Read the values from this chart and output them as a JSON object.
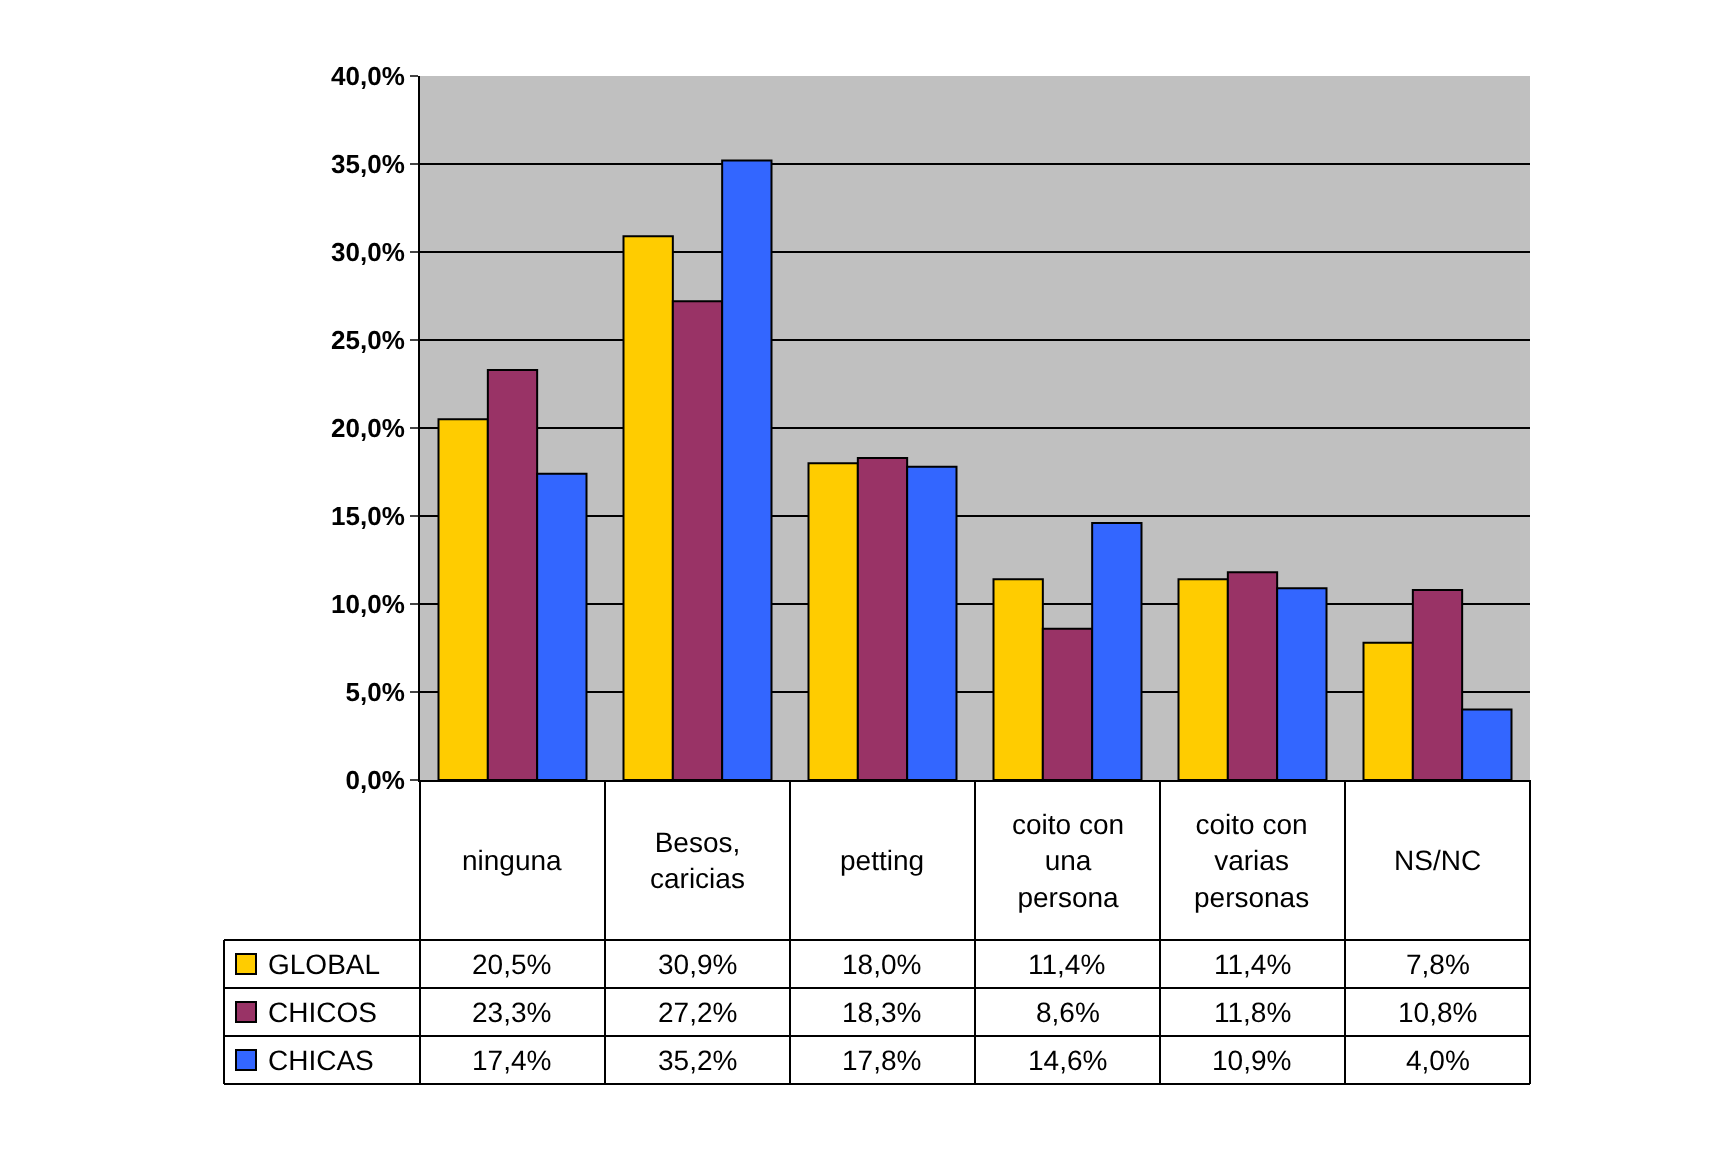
{
  "chart_data": {
    "type": "bar",
    "categories": [
      "ninguna",
      "Besos, caricias",
      "petting",
      "coito con una persona",
      "coito con varias personas",
      "NS/NC"
    ],
    "series": [
      {
        "name": "GLOBAL",
        "color": "#ffcc00",
        "values": [
          20.5,
          30.9,
          18.0,
          11.4,
          11.4,
          7.8
        ],
        "value_labels": [
          "20,5%",
          "30,9%",
          "18,0%",
          "11,4%",
          "11,4%",
          "7,8%"
        ]
      },
      {
        "name": "CHICOS",
        "color": "#993366",
        "values": [
          23.3,
          27.2,
          18.3,
          8.6,
          11.8,
          10.8
        ],
        "value_labels": [
          "23,3%",
          "27,2%",
          "18,3%",
          "8,6%",
          "11,8%",
          "10,8%"
        ]
      },
      {
        "name": "CHICAS",
        "color": "#3366ff",
        "values": [
          17.4,
          35.2,
          17.8,
          14.6,
          10.9,
          4.0
        ],
        "value_labels": [
          "17,4%",
          "35,2%",
          "17,8%",
          "14,6%",
          "10,9%",
          "4,0%"
        ]
      }
    ],
    "ylim": [
      0,
      40
    ],
    "yticks": [
      {
        "value": 0,
        "label": "0,0%"
      },
      {
        "value": 5,
        "label": "5,0%"
      },
      {
        "value": 10,
        "label": "10,0%"
      },
      {
        "value": 15,
        "label": "15,0%"
      },
      {
        "value": 20,
        "label": "20,0%"
      },
      {
        "value": 25,
        "label": "25,0%"
      },
      {
        "value": 30,
        "label": "30,0%"
      },
      {
        "value": 35,
        "label": "35,0%"
      },
      {
        "value": 40,
        "label": "40,0%"
      }
    ],
    "grid": "y",
    "legend": "bottom"
  }
}
